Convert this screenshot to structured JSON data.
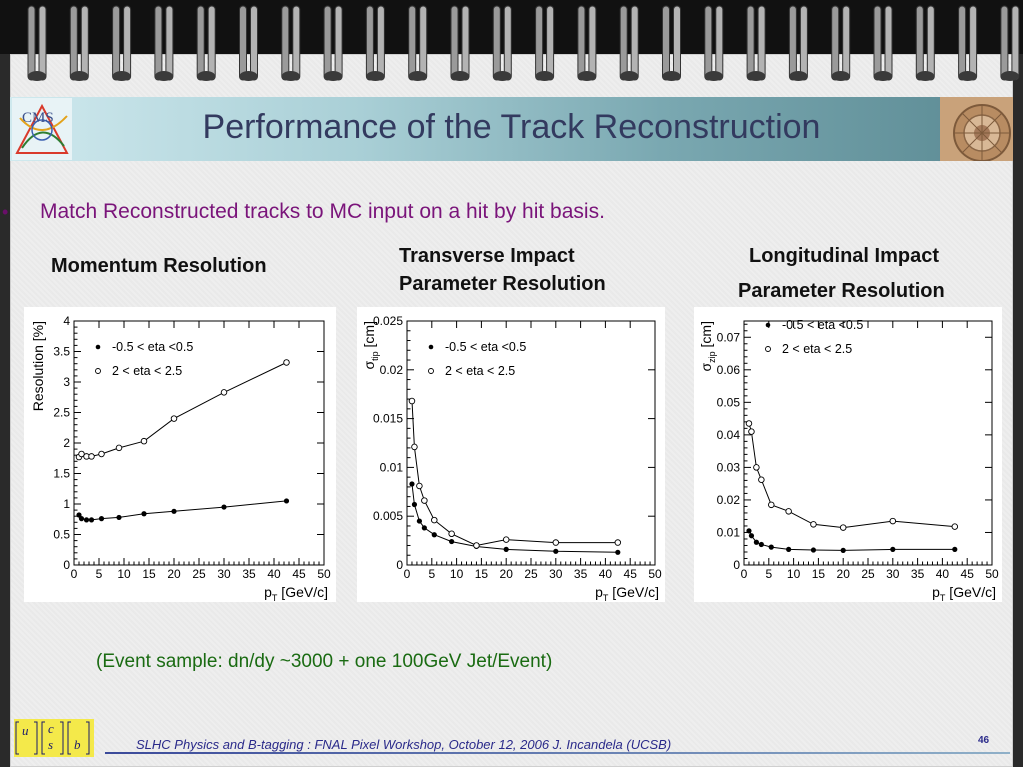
{
  "slide": {
    "title": "Performance of the Track Reconstruction",
    "bullet": "Match Reconstructed tracks to MC input on a hit by hit basis.",
    "bullet_marker": "•",
    "plot_titles": {
      "momentum": "Momentum Resolution",
      "transverse_1": "Transverse Impact",
      "transverse_2": "Parameter Resolution",
      "longitudinal_1": "Longitudinal Impact",
      "longitudinal_2": "Parameter Resolution"
    },
    "footnote": "(Event sample: dn/dy ~3000 + one 100GeV Jet/Event)",
    "footer": "SLHC Physics and B-tagging : FNAL Pixel Workshop, October 12, 2006   J. Incandela (UCSB)",
    "page_number": "46",
    "logo_text": "CMS",
    "quark_letters": [
      "u",
      "c",
      "s",
      "b"
    ],
    "colors": {
      "title_text": "#333a5f",
      "bullet_text": "#7a147a",
      "footnote_text": "#1a6b12",
      "footer_text": "#2a2a8a"
    }
  },
  "chart_data": [
    {
      "type": "line",
      "ylabel": "Resolution [%]",
      "xlabel": "p_T [GeV/c]",
      "xlim": [
        0,
        50
      ],
      "ylim": [
        0,
        4
      ],
      "xticks": [
        0,
        5,
        10,
        15,
        20,
        25,
        30,
        35,
        40,
        45,
        50
      ],
      "xtick_labels": [
        "0",
        "5",
        "10",
        "15",
        "20",
        "25",
        "30",
        "35",
        "40",
        "45",
        "50"
      ],
      "yticks": [
        0,
        0.5,
        1,
        1.5,
        2,
        2.5,
        3,
        3.5,
        4
      ],
      "ytick_labels": [
        "0",
        "0.5",
        "1",
        "1.5",
        "2",
        "2.5",
        "3",
        "3.5",
        "4"
      ],
      "legend_position": "top-left",
      "series": [
        {
          "name": "-0.5 < eta <0.5",
          "marker": "filled",
          "x": [
            1,
            1.5,
            2.5,
            3.5,
            5.5,
            9,
            14,
            20,
            30,
            42.5
          ],
          "y": [
            0.82,
            0.76,
            0.74,
            0.74,
            0.76,
            0.78,
            0.84,
            0.88,
            0.95,
            1.05
          ]
        },
        {
          "name": "2 < eta < 2.5",
          "marker": "open",
          "x": [
            1,
            1.5,
            2.5,
            3.5,
            5.5,
            9,
            14,
            20,
            30,
            42.5
          ],
          "y": [
            1.77,
            1.82,
            1.78,
            1.78,
            1.82,
            1.92,
            2.03,
            2.4,
            2.83,
            3.32
          ]
        }
      ]
    },
    {
      "type": "line",
      "ylabel": "σ_tip [cm]",
      "xlabel": "p_T [GeV/c]",
      "xlim": [
        0,
        50
      ],
      "ylim": [
        0,
        0.025
      ],
      "xticks": [
        0,
        5,
        10,
        15,
        20,
        25,
        30,
        35,
        40,
        45,
        50
      ],
      "xtick_labels": [
        "0",
        "5",
        "10",
        "15",
        "20",
        "25",
        "30",
        "35",
        "40",
        "45",
        "50"
      ],
      "yticks": [
        0,
        0.005,
        0.01,
        0.015,
        0.02,
        0.025
      ],
      "ytick_labels": [
        "0",
        "0.005",
        "0.01",
        "0.015",
        "0.02",
        "0.025"
      ],
      "legend_position": "top-left",
      "series": [
        {
          "name": "-0.5 < eta <0.5",
          "marker": "filled",
          "x": [
            1,
            1.5,
            2.5,
            3.5,
            5.5,
            9,
            14,
            20,
            30,
            42.5
          ],
          "y": [
            0.0083,
            0.0062,
            0.0045,
            0.0038,
            0.0031,
            0.0024,
            0.0019,
            0.0016,
            0.0014,
            0.0013
          ]
        },
        {
          "name": "2 < eta < 2.5",
          "marker": "open",
          "x": [
            1,
            1.5,
            2.5,
            3.5,
            5.5,
            9,
            14,
            20,
            30,
            42.5
          ],
          "y": [
            0.0168,
            0.0121,
            0.0081,
            0.0066,
            0.0046,
            0.0032,
            0.002,
            0.0026,
            0.0023,
            0.0023
          ]
        }
      ]
    },
    {
      "type": "line",
      "ylabel": "σ_zip [cm]",
      "xlabel": "p_T [GeV/c]",
      "xlim": [
        0,
        50
      ],
      "ylim": [
        0,
        0.075
      ],
      "xticks": [
        0,
        5,
        10,
        15,
        20,
        25,
        30,
        35,
        40,
        45,
        50
      ],
      "xtick_labels": [
        "0",
        "5",
        "10",
        "15",
        "20",
        "25",
        "30",
        "35",
        "40",
        "45",
        "50"
      ],
      "yticks": [
        0,
        0.01,
        0.02,
        0.03,
        0.04,
        0.05,
        0.06,
        0.07
      ],
      "ytick_labels": [
        "0",
        "0.01",
        "0.02",
        "0.03",
        "0.04",
        "0.05",
        "0.06",
        "0.07"
      ],
      "legend_position": "top-left",
      "series": [
        {
          "name": "-0.5 < eta <0.5",
          "marker": "filled",
          "x": [
            1,
            1.5,
            2.5,
            3.5,
            5.5,
            9,
            14,
            20,
            30,
            42.5
          ],
          "y": [
            0.0105,
            0.009,
            0.007,
            0.0063,
            0.0055,
            0.0048,
            0.0046,
            0.0045,
            0.0048,
            0.0048
          ]
        },
        {
          "name": "2 < eta < 2.5",
          "marker": "open",
          "x": [
            1,
            1.5,
            2.5,
            3.5,
            5.5,
            9,
            14,
            20,
            30,
            42.5
          ],
          "y": [
            0.0435,
            0.041,
            0.03,
            0.0262,
            0.0185,
            0.0165,
            0.0125,
            0.0115,
            0.0135,
            0.0118
          ]
        }
      ]
    }
  ]
}
